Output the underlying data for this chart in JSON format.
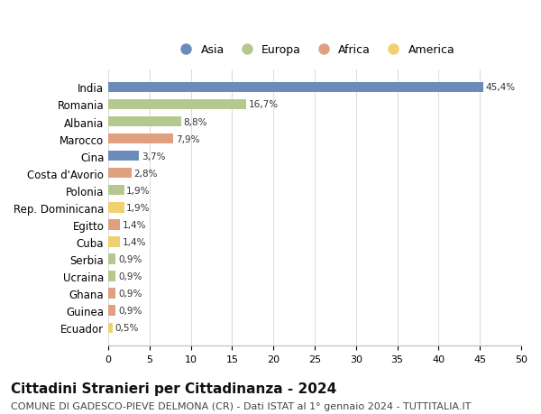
{
  "countries": [
    "India",
    "Romania",
    "Albania",
    "Marocco",
    "Cina",
    "Costa d'Avorio",
    "Polonia",
    "Rep. Dominicana",
    "Egitto",
    "Cuba",
    "Serbia",
    "Ucraina",
    "Ghana",
    "Guinea",
    "Ecuador"
  ],
  "values": [
    45.4,
    16.7,
    8.8,
    7.9,
    3.7,
    2.8,
    1.9,
    1.9,
    1.4,
    1.4,
    0.9,
    0.9,
    0.9,
    0.9,
    0.5
  ],
  "labels": [
    "45,4%",
    "16,7%",
    "8,8%",
    "7,9%",
    "3,7%",
    "2,8%",
    "1,9%",
    "1,9%",
    "1,4%",
    "1,4%",
    "0,9%",
    "0,9%",
    "0,9%",
    "0,9%",
    "0,5%"
  ],
  "continents": [
    "Asia",
    "Europa",
    "Europa",
    "Africa",
    "Asia",
    "Africa",
    "Europa",
    "America",
    "Africa",
    "America",
    "Europa",
    "Europa",
    "Africa",
    "Africa",
    "America"
  ],
  "continent_colors": {
    "Asia": "#6b8cba",
    "Europa": "#b5c98e",
    "Africa": "#e0a080",
    "America": "#f0d070"
  },
  "legend_order": [
    "Asia",
    "Europa",
    "Africa",
    "America"
  ],
  "xlim": [
    0,
    50
  ],
  "xticks": [
    0,
    5,
    10,
    15,
    20,
    25,
    30,
    35,
    40,
    45,
    50
  ],
  "title": "Cittadini Stranieri per Cittadinanza - 2024",
  "subtitle": "COMUNE DI GADESCO-PIEVE DELMONA (CR) - Dati ISTAT al 1° gennaio 2024 - TUTTITALIA.IT",
  "title_fontsize": 11,
  "subtitle_fontsize": 8,
  "background_color": "#ffffff",
  "grid_color": "#dddddd",
  "bar_height": 0.6
}
